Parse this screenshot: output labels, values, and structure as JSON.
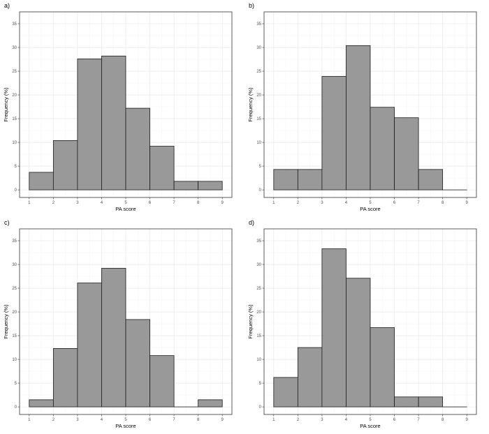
{
  "chart_data": [
    {
      "type": "bar",
      "panel_label": "a)",
      "xlabel": "PA score",
      "ylabel": "Frequency (%)",
      "bins": [
        [
          1,
          2
        ],
        [
          2,
          3
        ],
        [
          3,
          4
        ],
        [
          4,
          5
        ],
        [
          5,
          6
        ],
        [
          6,
          7
        ],
        [
          7,
          8
        ],
        [
          8,
          9
        ]
      ],
      "values": [
        3.7,
        10.4,
        27.6,
        28.2,
        17.2,
        9.2,
        1.8,
        1.8
      ],
      "xticks": [
        1,
        2,
        3,
        4,
        5,
        6,
        7,
        8,
        9
      ],
      "yticks": [
        0,
        5,
        10,
        15,
        20,
        25,
        30,
        35
      ],
      "xlim": [
        0.6,
        9.4
      ],
      "ylim": [
        -1.6,
        37.5
      ],
      "grid": true
    },
    {
      "type": "bar",
      "panel_label": "b)",
      "xlabel": "PA score",
      "ylabel": "Frequency (%)",
      "bins": [
        [
          1,
          2
        ],
        [
          2,
          3
        ],
        [
          3,
          4
        ],
        [
          4,
          5
        ],
        [
          5,
          6
        ],
        [
          6,
          7
        ],
        [
          7,
          8
        ],
        [
          8,
          9
        ]
      ],
      "values": [
        4.3,
        4.3,
        23.9,
        30.4,
        17.4,
        15.2,
        4.3,
        0
      ],
      "xticks": [
        1,
        2,
        3,
        4,
        5,
        6,
        7,
        8,
        9
      ],
      "yticks": [
        0,
        5,
        10,
        15,
        20,
        25,
        30,
        35
      ],
      "xlim": [
        0.6,
        9.4
      ],
      "ylim": [
        -1.6,
        37.5
      ],
      "grid": true
    },
    {
      "type": "bar",
      "panel_label": "c)",
      "xlabel": "PA score",
      "ylabel": "Frequency (%)",
      "bins": [
        [
          1,
          2
        ],
        [
          2,
          3
        ],
        [
          3,
          4
        ],
        [
          4,
          5
        ],
        [
          5,
          6
        ],
        [
          6,
          7
        ],
        [
          7,
          8
        ],
        [
          8,
          9
        ]
      ],
      "values": [
        1.5,
        12.3,
        26.1,
        29.2,
        18.4,
        10.8,
        0,
        1.5
      ],
      "xticks": [
        1,
        2,
        3,
        4,
        5,
        6,
        7,
        8,
        9
      ],
      "yticks": [
        0,
        5,
        10,
        15,
        20,
        25,
        30,
        35
      ],
      "xlim": [
        0.6,
        9.4
      ],
      "ylim": [
        -1.6,
        37.5
      ],
      "grid": true
    },
    {
      "type": "bar",
      "panel_label": "d)",
      "xlabel": "PA score",
      "ylabel": "Frequency (%)",
      "bins": [
        [
          1,
          2
        ],
        [
          2,
          3
        ],
        [
          3,
          4
        ],
        [
          4,
          5
        ],
        [
          5,
          6
        ],
        [
          6,
          7
        ],
        [
          7,
          8
        ],
        [
          8,
          9
        ]
      ],
      "values": [
        6.2,
        12.5,
        33.3,
        27.1,
        16.7,
        2.1,
        2.1,
        0
      ],
      "xticks": [
        1,
        2,
        3,
        4,
        5,
        6,
        7,
        8,
        9
      ],
      "yticks": [
        0,
        5,
        10,
        15,
        20,
        25,
        30,
        35
      ],
      "xlim": [
        0.6,
        9.4
      ],
      "ylim": [
        -1.6,
        37.5
      ],
      "grid": true
    }
  ]
}
